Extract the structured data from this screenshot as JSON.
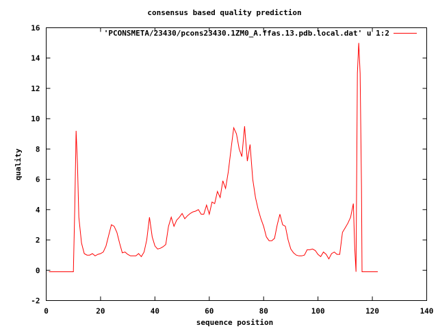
{
  "chart_data": {
    "type": "line",
    "title": "consensus based quality prediction",
    "xlabel": "sequence position",
    "ylabel": "quality",
    "xlim": [
      0,
      140
    ],
    "ylim": [
      -2,
      16
    ],
    "xticks": [
      0,
      20,
      40,
      60,
      80,
      100,
      120,
      140
    ],
    "yticks": [
      -2,
      0,
      2,
      4,
      6,
      8,
      10,
      12,
      14,
      16
    ],
    "grid": false,
    "legend_position": "top-right",
    "series": [
      {
        "name": "'PCONSMETA/23430/pcons23430.1ZM0_A.ffas.13.pdb.local.dat' u 1:2",
        "color": "#ff0000",
        "x": [
          1,
          2,
          3,
          4,
          5,
          6,
          7,
          8,
          9,
          10,
          10.5,
          11,
          11.5,
          12,
          13,
          14,
          15,
          16,
          17,
          18,
          19,
          20,
          21,
          22,
          23,
          24,
          25,
          26,
          27,
          28,
          29,
          30,
          31,
          32,
          33,
          34,
          35,
          36,
          37,
          38,
          39,
          40,
          41,
          42,
          43,
          44,
          45,
          46,
          47,
          48,
          49,
          50,
          51,
          52,
          53,
          54,
          55,
          56,
          57,
          58,
          59,
          60,
          61,
          62,
          63,
          64,
          65,
          66,
          67,
          68,
          69,
          70,
          71,
          72,
          73,
          74,
          75,
          76,
          77,
          78,
          79,
          80,
          81,
          82,
          83,
          84,
          85,
          86,
          87,
          88,
          89,
          90,
          91,
          92,
          93,
          94,
          95,
          96,
          97,
          98,
          99,
          100,
          101,
          102,
          103,
          104,
          105,
          106,
          107,
          108,
          109,
          110,
          111,
          112,
          113,
          113.5,
          114,
          114.5,
          115,
          115.5,
          116,
          116.2,
          117,
          118,
          119,
          120,
          121,
          122
        ],
        "y": [
          -0.1,
          -0.1,
          -0.1,
          -0.1,
          -0.1,
          -0.1,
          -0.1,
          -0.1,
          -0.1,
          -0.1,
          4.0,
          9.2,
          7.0,
          3.5,
          1.8,
          1.1,
          1.0,
          1.0,
          1.1,
          0.95,
          1.05,
          1.1,
          1.2,
          1.6,
          2.3,
          3.0,
          2.9,
          2.5,
          1.8,
          1.15,
          1.2,
          1.05,
          0.95,
          0.95,
          0.95,
          1.1,
          0.9,
          1.2,
          2.0,
          3.5,
          2.2,
          1.6,
          1.4,
          1.45,
          1.55,
          1.7,
          2.9,
          3.5,
          2.9,
          3.3,
          3.5,
          3.75,
          3.4,
          3.6,
          3.75,
          3.85,
          3.9,
          4.0,
          3.7,
          3.7,
          4.3,
          3.7,
          4.5,
          4.4,
          5.2,
          4.8,
          5.9,
          5.4,
          6.5,
          8.0,
          9.4,
          9.0,
          8.0,
          7.5,
          9.5,
          7.2,
          8.3,
          6.0,
          4.8,
          4.0,
          3.4,
          2.9,
          2.2,
          1.95,
          1.95,
          2.1,
          3.0,
          3.7,
          3.0,
          2.9,
          2.0,
          1.4,
          1.15,
          1.0,
          0.95,
          0.95,
          1.0,
          1.35,
          1.35,
          1.4,
          1.3,
          1.05,
          0.9,
          1.2,
          1.05,
          0.75,
          1.1,
          1.2,
          1.05,
          1.05,
          2.5,
          2.8,
          3.1,
          3.5,
          4.4,
          1.5,
          -0.1,
          13.0,
          15.0,
          13.0,
          5.5,
          -0.1,
          -0.1,
          -0.1,
          -0.1,
          -0.1,
          -0.1,
          -0.1
        ]
      }
    ]
  }
}
